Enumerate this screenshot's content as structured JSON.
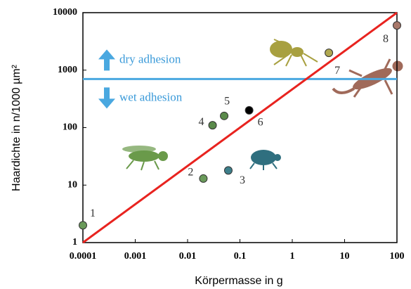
{
  "chart_data": {
    "type": "scatter",
    "x_label": "Körpermasse in g",
    "y_label": "Haardichte  in n/1000 µm²",
    "log_x": true,
    "log_y": true,
    "xlim": [
      0.0001,
      100
    ],
    "xticks": [
      0.0001,
      0.001,
      0.01,
      0.1,
      1,
      10,
      100
    ],
    "ylim": [
      1,
      10000
    ],
    "yticks": [
      1,
      10,
      100,
      1000,
      10000
    ],
    "points": [
      {
        "label": "1",
        "x": 0.0001,
        "y": 2,
        "color": "#6a9a5a"
      },
      {
        "label": "2",
        "x": 0.02,
        "y": 13,
        "color": "#6a9a5a"
      },
      {
        "label": "3",
        "x": 0.06,
        "y": 18,
        "color": "#3d7f8a"
      },
      {
        "label": "4",
        "x": 0.03,
        "y": 110,
        "color": "#5a8a4a"
      },
      {
        "label": "5",
        "x": 0.05,
        "y": 160,
        "color": "#5a8a4a"
      },
      {
        "label": "6",
        "x": 0.15,
        "y": 200,
        "color": "#000000"
      },
      {
        "label": "7",
        "x": 5,
        "y": 2000,
        "color": "#b0a850"
      },
      {
        "label": "8",
        "x": 100,
        "y": 6000,
        "color": "#a8786a"
      }
    ],
    "trend_line": {
      "x": [
        0.0001,
        100
      ],
      "y": [
        1,
        10000
      ],
      "color": "#e8231f"
    },
    "threshold": {
      "y": 700,
      "color": "#4aa8e0",
      "above": "dry adhesion",
      "below": "wet adhesion"
    }
  }
}
